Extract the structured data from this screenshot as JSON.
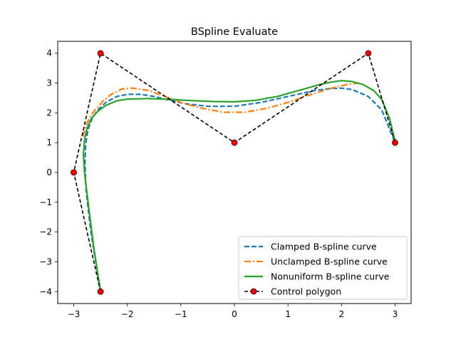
{
  "chart_data": {
    "type": "line",
    "title": "BSpline Evaluate",
    "xlabel": "",
    "ylabel": "",
    "xlim": [
      -3.3,
      3.3
    ],
    "ylim": [
      -4.4,
      4.4
    ],
    "xticks": [
      -3,
      -2,
      -1,
      0,
      1,
      2,
      3
    ],
    "yticks": [
      -4,
      -3,
      -2,
      -1,
      0,
      1,
      2,
      3,
      4
    ],
    "grid": false,
    "legend_position": "lower right",
    "series": [
      {
        "name": "Clamped B-spline curve",
        "color": "#1f77b4",
        "style": "dashed",
        "x": [
          -2.5,
          -2.68,
          -2.77,
          -2.79,
          -2.78,
          -2.74,
          -2.66,
          -2.55,
          -2.4,
          -2.2,
          -2.0,
          -1.75,
          -1.5,
          -1.2,
          -0.9,
          -0.5,
          0.0,
          0.5,
          1.0,
          1.5,
          1.8,
          2.0,
          2.2,
          2.5,
          2.75,
          3.0
        ],
        "y": [
          -4.0,
          -2.0,
          -0.6,
          0.3,
          0.9,
          1.4,
          1.8,
          2.1,
          2.35,
          2.55,
          2.62,
          2.62,
          2.55,
          2.42,
          2.3,
          2.22,
          2.22,
          2.35,
          2.55,
          2.75,
          2.82,
          2.83,
          2.78,
          2.55,
          2.1,
          1.0
        ]
      },
      {
        "name": "Unclamped B-spline curve",
        "color": "#ff7f0e",
        "style": "dashdot",
        "x": [
          -2.83,
          -2.78,
          -2.7,
          -2.6,
          -2.45,
          -2.3,
          -2.1,
          -1.9,
          -1.6,
          -1.3,
          -1.0,
          -0.6,
          -0.2,
          0.2,
          0.6,
          1.0,
          1.4,
          1.8,
          2.1,
          2.33
        ],
        "y": [
          1.2,
          1.55,
          1.85,
          2.1,
          2.4,
          2.62,
          2.8,
          2.83,
          2.75,
          2.55,
          2.35,
          2.15,
          2.02,
          2.02,
          2.15,
          2.35,
          2.6,
          2.82,
          2.95,
          3.0
        ]
      },
      {
        "name": "Nonuniform B-spline curve",
        "color": "#2ca02c",
        "style": "solid",
        "x": [
          -2.5,
          -2.62,
          -2.72,
          -2.8,
          -2.82,
          -2.8,
          -2.75,
          -2.67,
          -2.55,
          -2.4,
          -2.2,
          -2.0,
          -1.6,
          -1.2,
          -0.8,
          -0.4,
          0.0,
          0.4,
          0.8,
          1.2,
          1.6,
          1.8,
          2.0,
          2.2,
          2.4,
          2.6,
          2.75,
          2.9,
          3.0
        ],
        "y": [
          -4.0,
          -2.6,
          -1.2,
          0.0,
          0.6,
          1.1,
          1.5,
          1.82,
          2.05,
          2.25,
          2.4,
          2.46,
          2.48,
          2.45,
          2.41,
          2.38,
          2.37,
          2.42,
          2.55,
          2.75,
          2.95,
          3.03,
          3.08,
          3.05,
          2.95,
          2.75,
          2.45,
          1.8,
          1.05
        ]
      },
      {
        "name": "Control polygon",
        "color": "#000000",
        "marker_color": "#ff0000",
        "style": "dashed-markers",
        "x": [
          -2.5,
          -3.0,
          -2.5,
          0.0,
          2.5,
          3.0
        ],
        "y": [
          -4.0,
          0.0,
          4.0,
          1.0,
          4.0,
          1.0
        ]
      }
    ]
  }
}
